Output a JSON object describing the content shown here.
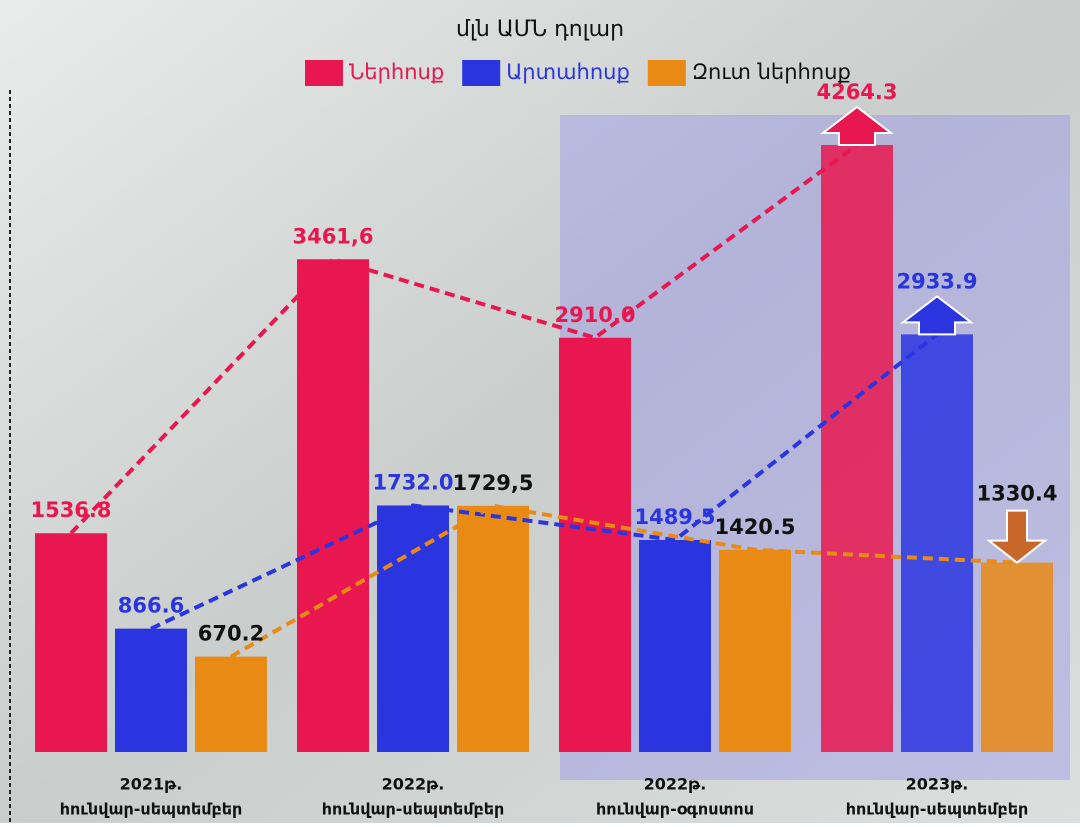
{
  "chart_data": {
    "type": "bar",
    "title": "մլն ԱՄՆ դոլար",
    "categories": [
      [
        "2021թ.",
        "հունվար-սեպտեմբեր"
      ],
      [
        "2022թ.",
        "հունվար-սեպտեմբեր"
      ],
      [
        "2022թ.",
        "հունվար-օգոստոս"
      ],
      [
        "2023թ.",
        "հունվար-սեպտեմբեր"
      ]
    ],
    "series": [
      {
        "name": "Ներհոսք",
        "color": "#e8174f",
        "values": [
          1536.8,
          3461.6,
          2910.0,
          4264.3
        ],
        "value_labels": [
          "1536.8",
          "3461,6",
          "2910.0",
          "4264.3"
        ]
      },
      {
        "name": "Արտահոսք",
        "color": "#2a35e0",
        "values": [
          866.6,
          1732.0,
          1489.5,
          2933.9
        ],
        "value_labels": [
          "866.6",
          "1732.0",
          "1489.5",
          "2933.9"
        ]
      },
      {
        "name": "Զուտ ներհոսք",
        "color": "#e88a14",
        "values": [
          670.2,
          1729.5,
          1420.5,
          1330.4
        ],
        "value_labels": [
          "670.2",
          "1729,5",
          "1420.5",
          "1330.4"
        ]
      }
    ]
  }
}
